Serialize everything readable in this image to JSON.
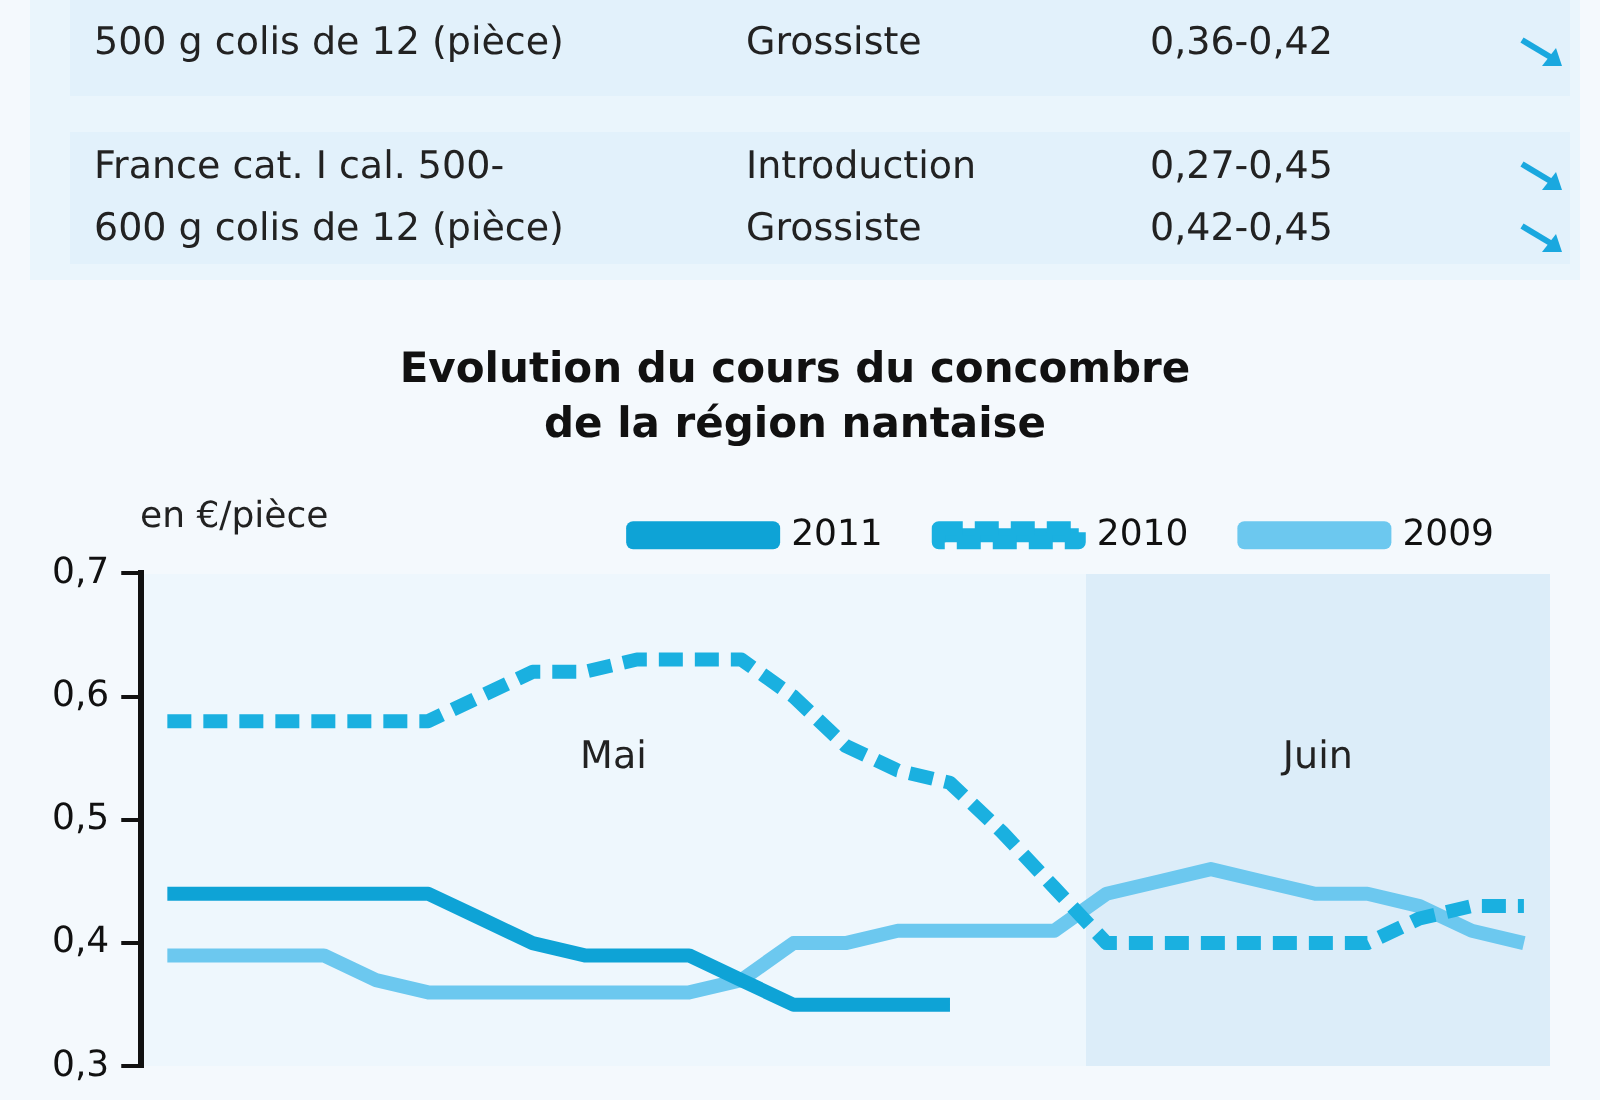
{
  "chart_data": {
    "type": "line",
    "title": "Evolution du cours du concombre\nde la région nantaise",
    "ylabel": "en €/pièce",
    "annotations": [
      "500 g colis de 12 (pièce)",
      "Grossiste",
      "0,36-0,42",
      "France cat. I cal. 500-\n600 g colis de 12 (pièce)",
      "Introduction\nGrossiste",
      "0,27-0,45\n0,42-0,45",
      "Mai",
      "Juin"
    ],
    "categories": [
      null,
      null,
      null,
      null,
      null,
      null,
      null,
      null,
      null,
      null,
      null,
      null,
      null,
      null,
      null,
      null,
      null,
      null,
      null,
      null,
      null,
      null,
      null,
      null,
      null,
      null,
      null
    ],
    "series": [
      {
        "name": "2011",
        "color": "#0ea3d6",
        "line_style": "solid",
        "values": [
          0.44,
          0.44,
          0.44,
          0.44,
          0.44,
          0.44,
          0.42,
          0.4,
          0.39,
          0.39,
          0.39,
          0.37,
          0.35,
          0.35,
          0.35,
          0.35,
          null,
          null,
          null,
          null,
          null,
          null,
          null,
          null,
          null,
          null,
          null
        ]
      },
      {
        "name": "2010",
        "color": "#1ab0e0",
        "line_style": "dashed",
        "values": [
          0.58,
          0.58,
          0.58,
          0.58,
          0.58,
          0.58,
          0.6,
          0.62,
          0.62,
          0.63,
          0.63,
          0.63,
          0.6,
          0.56,
          0.54,
          0.53,
          0.49,
          0.445,
          0.4,
          0.4,
          0.4,
          0.4,
          0.4,
          0.4,
          0.42,
          0.43,
          0.43
        ]
      },
      {
        "name": "2009",
        "color": "#6cc8ef",
        "line_style": "solid",
        "values": [
          0.39,
          0.39,
          0.39,
          0.39,
          0.37,
          0.36,
          0.36,
          0.36,
          0.36,
          0.36,
          0.36,
          0.37,
          0.4,
          0.4,
          0.41,
          0.41,
          0.41,
          0.41,
          0.44,
          0.45,
          0.46,
          0.45,
          0.44,
          0.44,
          0.43,
          0.41,
          0.4
        ]
      }
    ],
    "ylim": [
      0.3,
      0.7
    ],
    "yticks": [
      {
        "value": 0.3,
        "label": "0,3"
      },
      {
        "value": 0.4,
        "label": "0,4"
      },
      {
        "value": 0.5,
        "label": "0,5"
      },
      {
        "value": 0.6,
        "label": "0,6"
      },
      {
        "value": 0.7,
        "label": "0,7"
      }
    ],
    "tick_labels": "y",
    "grid": false,
    "legend": "top"
  }
}
